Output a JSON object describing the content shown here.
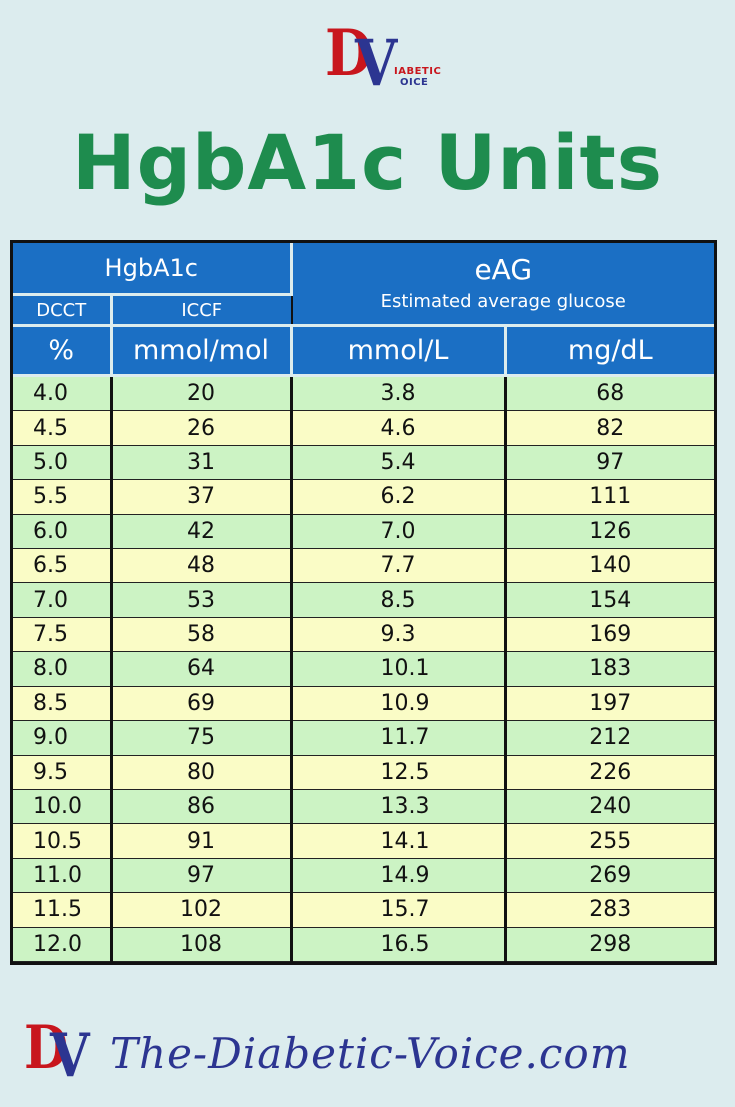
{
  "logo": {
    "letter_d": "D",
    "letter_v": "V",
    "line1": "IABETIC",
    "line2": "OICE"
  },
  "title": "HgbA1c Units",
  "table": {
    "group_hgba1c": "HgbA1c",
    "group_eag": "eAG",
    "group_eag_sub": "Estimated average glucose",
    "sub_dcct": "DCCT",
    "sub_iccf": "ICCF",
    "units": [
      "%",
      "mmol/mol",
      "mmol/L",
      "mg/dL"
    ],
    "rows": [
      [
        "4.0",
        "20",
        "3.8",
        "68"
      ],
      [
        "4.5",
        "26",
        "4.6",
        "82"
      ],
      [
        "5.0",
        "31",
        "5.4",
        "97"
      ],
      [
        "5.5",
        "37",
        "6.2",
        "111"
      ],
      [
        "6.0",
        "42",
        "7.0",
        "126"
      ],
      [
        "6.5",
        "48",
        "7.7",
        "140"
      ],
      [
        "7.0",
        "53",
        "8.5",
        "154"
      ],
      [
        "7.5",
        "58",
        "9.3",
        "169"
      ],
      [
        "8.0",
        "64",
        "10.1",
        "183"
      ],
      [
        "8.5",
        "69",
        "10.9",
        "197"
      ],
      [
        "9.0",
        "75",
        "11.7",
        "212"
      ],
      [
        "9.5",
        "80",
        "12.5",
        "226"
      ],
      [
        "10.0",
        "86",
        "13.3",
        "240"
      ],
      [
        "10.5",
        "91",
        "14.1",
        "255"
      ],
      [
        "11.0",
        "97",
        "14.9",
        "269"
      ],
      [
        "11.5",
        "102",
        "15.7",
        "283"
      ],
      [
        "12.0",
        "108",
        "16.5",
        "298"
      ]
    ]
  },
  "footer": {
    "url": "The-Diabetic-Voice.com"
  },
  "colors": {
    "background": "#dcecee",
    "title_green": "#1e8c4e",
    "header_blue": "#1b6fc4",
    "row_green": "#ccf3c4",
    "row_yellow": "#fafcc6",
    "logo_red": "#c8161d",
    "logo_blue": "#2c3591"
  }
}
